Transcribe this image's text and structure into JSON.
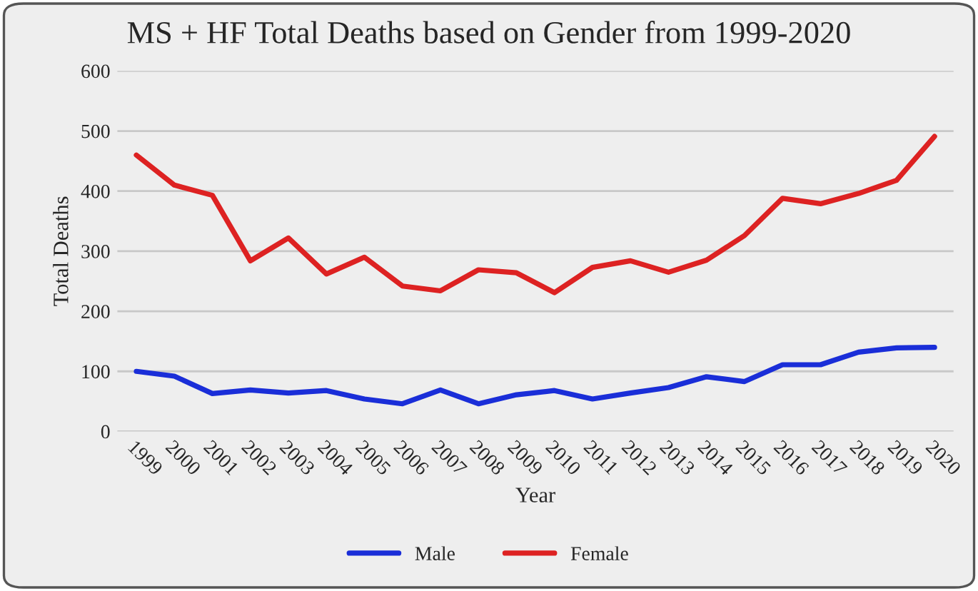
{
  "chart_data": {
    "type": "line",
    "title": "MS + HF Total Deaths based on Gender from 1999-2020",
    "xlabel": "Year",
    "ylabel": "Total Deaths",
    "categories": [
      "1999",
      "2000",
      "2001",
      "2002",
      "2003",
      "2004",
      "2005",
      "2006",
      "2007",
      "2008",
      "2009",
      "2010",
      "2011",
      "2012",
      "2013",
      "2014",
      "2015",
      "2016",
      "2017",
      "2018",
      "2019",
      "2020"
    ],
    "series": [
      {
        "name": "Male",
        "color": "#1a2ed8",
        "values": [
          100,
          92,
          63,
          69,
          64,
          68,
          54,
          46,
          69,
          46,
          61,
          68,
          54,
          64,
          73,
          91,
          83,
          111,
          111,
          132,
          139,
          140
        ]
      },
      {
        "name": "Female",
        "color": "#dd2222",
        "values": [
          460,
          410,
          393,
          284,
          322,
          262,
          290,
          242,
          234,
          269,
          264,
          231,
          273,
          284,
          265,
          285,
          326,
          388,
          379,
          396,
          418,
          491
        ]
      }
    ],
    "ylim": [
      0,
      600
    ],
    "yticks": [
      0,
      100,
      200,
      300,
      400,
      500,
      600
    ],
    "grid": "y",
    "legend": "bottom",
    "marker": "none",
    "line_style": "solid"
  }
}
